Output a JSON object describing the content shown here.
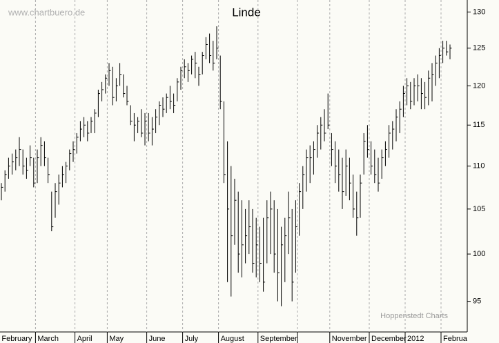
{
  "chart_data": {
    "type": "ohlc",
    "title": "Linde",
    "watermark": "www.chartbuero.de",
    "source": "Hoppenstedt Charts",
    "categories": [
      "February",
      "March",
      "April",
      "May",
      "June",
      "July",
      "August",
      "September",
      null,
      "November",
      "December",
      "2012",
      "Februa"
    ],
    "values": [
      [
        [
          108,
          106,
          107.5
        ],
        [
          109.5,
          107,
          109
        ],
        [
          111,
          108.5,
          110
        ],
        [
          111.5,
          109,
          110.5
        ],
        [
          112,
          109.5,
          111
        ],
        [
          113.5,
          110,
          112
        ],
        [
          112,
          109,
          110
        ],
        [
          111,
          108.5,
          109.5
        ],
        [
          112.5,
          110,
          111
        ],
        [
          111,
          107.5,
          108
        ]
      ],
      [
        [
          112,
          108,
          111
        ],
        [
          113.5,
          110,
          112.5
        ],
        [
          113,
          110,
          111
        ],
        [
          111,
          108,
          109
        ],
        [
          107,
          102.5,
          103
        ],
        [
          108,
          104,
          107
        ],
        [
          109,
          105.5,
          108
        ],
        [
          110,
          107.5,
          109
        ],
        [
          110.5,
          108,
          110
        ],
        [
          112,
          109.5,
          111.5
        ],
        [
          113,
          110.5,
          112
        ]
      ],
      [
        [
          114,
          111.5,
          113.5
        ],
        [
          115.5,
          113,
          114.5
        ],
        [
          116,
          113.5,
          115
        ],
        [
          115.5,
          113,
          114
        ],
        [
          116,
          114,
          115.5
        ],
        [
          117,
          114,
          116.5
        ],
        [
          119.5,
          116,
          119
        ],
        [
          120.5,
          118,
          119.5
        ],
        [
          121.5,
          119,
          121
        ]
      ],
      [
        [
          123,
          120,
          122
        ],
        [
          122.5,
          117.5,
          118.5
        ],
        [
          121,
          118,
          120
        ],
        [
          123,
          120,
          121.5
        ],
        [
          121.5,
          118.5,
          119
        ],
        [
          120,
          117.5,
          118
        ],
        [
          117.5,
          115,
          115.5
        ],
        [
          116.5,
          113,
          115
        ],
        [
          116,
          114,
          115.5
        ],
        [
          117,
          113.5,
          114
        ],
        [
          116.5,
          112.5,
          115.5
        ]
      ],
      [
        [
          116.5,
          113,
          114
        ],
        [
          116,
          112.5,
          114.5
        ],
        [
          117,
          114,
          116
        ],
        [
          118,
          115,
          117.5
        ],
        [
          118.5,
          116,
          117
        ],
        [
          119,
          116.5,
          118.5
        ],
        [
          120,
          117,
          118
        ],
        [
          119,
          116.5,
          117.5
        ],
        [
          121,
          118,
          120.5
        ],
        [
          122.5,
          119.5,
          122
        ]
      ],
      [
        [
          123.5,
          121,
          122.5
        ],
        [
          123,
          120.5,
          122
        ],
        [
          124,
          121.5,
          123.5
        ],
        [
          124.5,
          121,
          123
        ],
        [
          122.5,
          120,
          121.5
        ],
        [
          124.5,
          121.5,
          124
        ],
        [
          126.5,
          123.5,
          125.5
        ],
        [
          127,
          123,
          124
        ],
        [
          126,
          122,
          123
        ],
        [
          128,
          123.5,
          125
        ]
      ],
      [
        [
          124,
          117,
          118
        ],
        [
          118,
          108,
          109
        ],
        [
          113,
          97,
          105
        ],
        [
          110,
          95.5,
          102
        ],
        [
          108.5,
          101,
          106
        ],
        [
          107,
          98,
          100
        ],
        [
          106,
          97.5,
          101
        ],
        [
          105,
          99,
          102
        ],
        [
          106,
          100,
          103
        ],
        [
          105,
          98,
          99
        ],
        [
          104,
          97.5,
          101
        ]
      ],
      [
        [
          103,
          97,
          99
        ],
        [
          104,
          96,
          97
        ],
        [
          106,
          99,
          104
        ],
        [
          107,
          100,
          105
        ],
        [
          106,
          98,
          100
        ],
        [
          105,
          95,
          98
        ],
        [
          103,
          94.5,
          101
        ],
        [
          104,
          97,
          102
        ],
        [
          107,
          100,
          104
        ],
        [
          105,
          95,
          97
        ],
        [
          106,
          98,
          103
        ]
      ],
      [
        [
          108,
          102,
          107
        ],
        [
          110,
          105,
          109
        ],
        [
          112,
          107,
          111
        ],
        [
          112.5,
          108,
          111
        ],
        [
          113,
          109,
          112
        ],
        [
          115,
          111,
          114
        ],
        [
          116,
          112,
          115
        ],
        [
          117,
          113,
          114
        ],
        [
          119,
          114.5,
          115
        ]
      ],
      [
        [
          114,
          110,
          112
        ],
        [
          113,
          108,
          110
        ],
        [
          112,
          107,
          109
        ],
        [
          111,
          105,
          107
        ],
        [
          112,
          106.5,
          110
        ],
        [
          111,
          106,
          108
        ],
        [
          109,
          104,
          105
        ],
        [
          107,
          102,
          104
        ],
        [
          109,
          104,
          108
        ],
        [
          114,
          109,
          113
        ],
        [
          115,
          111,
          112
        ]
      ],
      [
        [
          113,
          109,
          110
        ],
        [
          112,
          108,
          109
        ],
        [
          111,
          107,
          108
        ],
        [
          112,
          108.5,
          111
        ],
        [
          113,
          110,
          112
        ],
        [
          115,
          111,
          114
        ],
        [
          115.5,
          112,
          114.5
        ],
        [
          117,
          113,
          116
        ],
        [
          118,
          114,
          117
        ],
        [
          120,
          116,
          119
        ]
      ],
      [
        [
          121,
          117.5,
          120
        ],
        [
          120.5,
          117,
          118
        ],
        [
          121,
          117.5,
          120
        ],
        [
          121.5,
          118,
          120
        ],
        [
          121,
          117,
          119
        ],
        [
          120.5,
          117,
          118.5
        ],
        [
          122,
          117.5,
          121
        ],
        [
          123,
          118,
          121.5
        ],
        [
          124,
          120,
          123
        ],
        [
          125,
          121,
          124
        ]
      ],
      [
        [
          126,
          123,
          125
        ],
        [
          126,
          124,
          124.5
        ],
        [
          125.5,
          123.5,
          125
        ]
      ]
    ],
    "color": "#000000",
    "ylim": [
      91.9,
      131.7
    ],
    "yticks": [
      95,
      100,
      105,
      110,
      115,
      120,
      125,
      130
    ],
    "log": true,
    "grid": true
  }
}
